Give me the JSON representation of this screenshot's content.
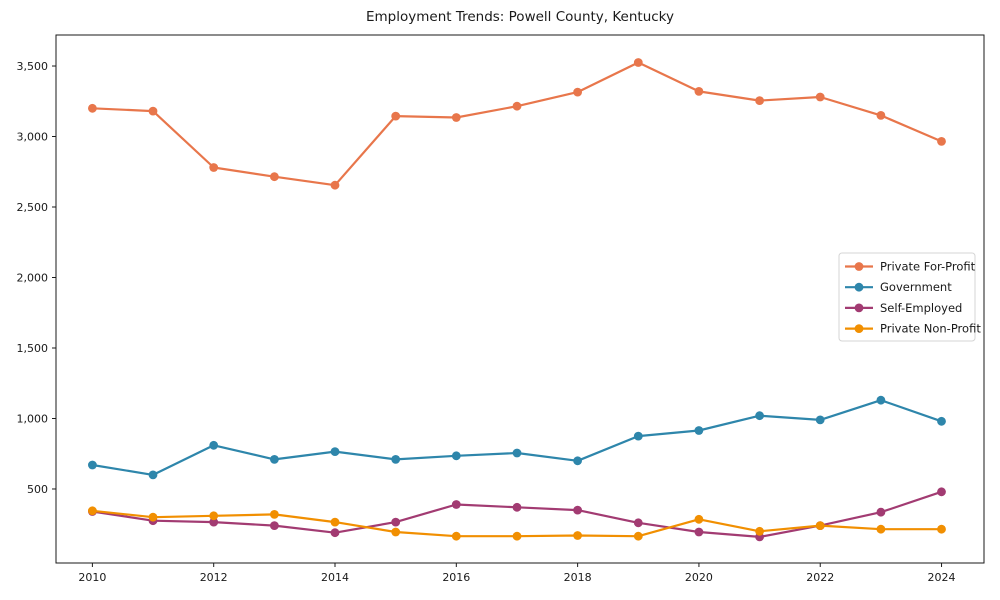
{
  "title": "Employment Trends: Powell County, Kentucky",
  "chart_data": {
    "type": "line",
    "title": "Employment Trends: Powell County, Kentucky",
    "xlabel": "",
    "ylabel": "",
    "x": [
      2010,
      2011,
      2012,
      2013,
      2014,
      2015,
      2016,
      2017,
      2018,
      2019,
      2020,
      2021,
      2022,
      2023,
      2024
    ],
    "series": [
      {
        "name": "Private For-Profit",
        "color": "#E8764B",
        "values": [
          3200,
          3180,
          2780,
          2715,
          2655,
          3145,
          3135,
          3215,
          3315,
          3525,
          3320,
          3255,
          3280,
          3150,
          2965
        ]
      },
      {
        "name": "Government",
        "color": "#2E86AB",
        "values": [
          670,
          600,
          810,
          710,
          765,
          710,
          735,
          755,
          700,
          875,
          915,
          1020,
          990,
          1130,
          980
        ]
      },
      {
        "name": "Self-Employed",
        "color": "#A23B72",
        "values": [
          340,
          275,
          265,
          240,
          190,
          265,
          390,
          370,
          350,
          260,
          195,
          160,
          240,
          335,
          480
        ]
      },
      {
        "name": "Private Non-Profit",
        "color": "#F18F01",
        "values": [
          345,
          300,
          310,
          320,
          265,
          195,
          165,
          165,
          170,
          165,
          285,
          200,
          240,
          215,
          215
        ]
      }
    ],
    "xlim": [
      2009.4,
      2024.7
    ],
    "ylim": [
      -25,
      3720
    ],
    "xticks": [
      2010,
      2012,
      2014,
      2016,
      2018,
      2020,
      2022,
      2024
    ],
    "xtick_labels": [
      "2010",
      "2012",
      "2014",
      "2016",
      "2018",
      "2020",
      "2022",
      "2024"
    ],
    "yticks": [
      500,
      1000,
      1500,
      2000,
      2500,
      3000,
      3500
    ],
    "ytick_labels": [
      "500",
      "1,000",
      "1,500",
      "2,000",
      "2,500",
      "3,000",
      "3,500"
    ],
    "grid": false,
    "marker": "circle",
    "legend_position": "center right",
    "axis_color": "#1a1a1a",
    "legend_border_color": "#d5d5d5"
  }
}
